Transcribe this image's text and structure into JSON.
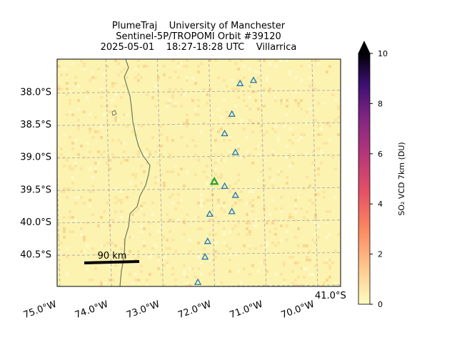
{
  "chart_data": {
    "type": "map",
    "title": [
      "PlumeTraj    University of Manchester",
      "Sentinel-5P/TROPOMI Orbit #39120",
      "2025-05-01    18:27-18:28 UTC    Villarrica"
    ],
    "xlim": [
      -75,
      -69.5
    ],
    "ylim": [
      -41,
      -37.5
    ],
    "xticks": [
      {
        "value": -75,
        "label": "75.0°W"
      },
      {
        "value": -74,
        "label": "74.0°W"
      },
      {
        "value": -73,
        "label": "73.0°W"
      },
      {
        "value": -72,
        "label": "72.0°W"
      },
      {
        "value": -71,
        "label": "71.0°W"
      },
      {
        "value": -70,
        "label": "70.0°W"
      }
    ],
    "yticks": [
      {
        "value": -38,
        "label": "38.0°S"
      },
      {
        "value": -38.5,
        "label": "38.5°S"
      },
      {
        "value": -39,
        "label": "39.0°S"
      },
      {
        "value": -39.5,
        "label": "39.5°S"
      },
      {
        "value": -40,
        "label": "40.0°S"
      },
      {
        "value": -40.5,
        "label": "40.5°S"
      },
      {
        "value": -41,
        "label": "41.0°S"
      }
    ],
    "grid": true,
    "scale_bar": "90 km",
    "volcanoes": {
      "color": "#1f77b4",
      "lon": [
        -71.45,
        -71.19,
        -71.61,
        -71.75,
        -71.54,
        -71.75,
        -71.54,
        -71.61,
        -72.04,
        -72.08,
        -72.13,
        -72.27
      ],
      "lat": [
        -37.88,
        -37.83,
        -38.35,
        -38.65,
        -38.94,
        -39.46,
        -39.6,
        -39.85,
        -39.89,
        -40.31,
        -40.55,
        -40.94
      ]
    },
    "target": {
      "color": "#2ca02c",
      "lon": -71.95,
      "lat": -39.39
    },
    "colorbar": {
      "label": "SO₂ VCD 7km (DU)",
      "lim": [
        0,
        10
      ],
      "ticks": [
        0,
        2,
        4,
        6,
        8,
        10
      ]
    }
  }
}
